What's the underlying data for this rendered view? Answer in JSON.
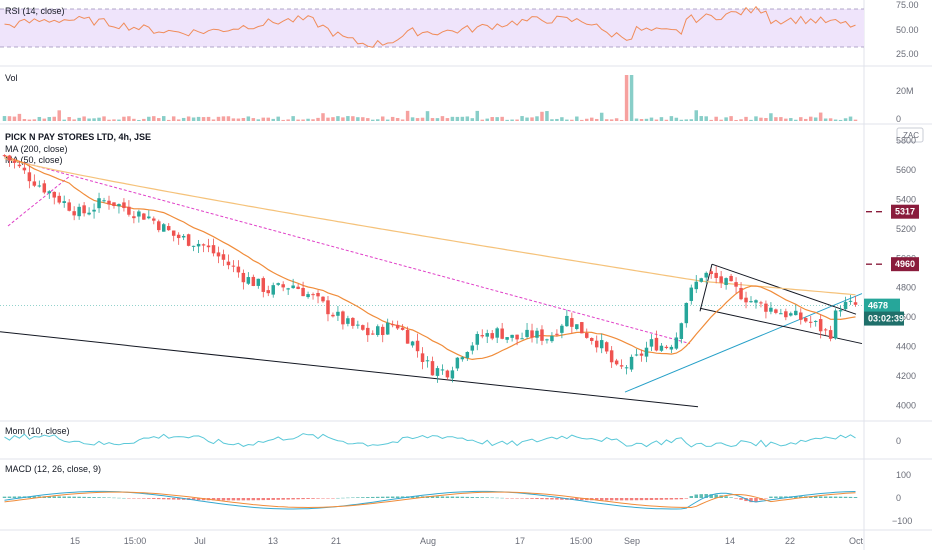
{
  "chart_data": {
    "type": "candlestick",
    "symbol_title": "PICK N PAY STORES LTD, 4h, JSE",
    "currency": "ZAC",
    "colors": {
      "up": "#26a69a",
      "down": "#ef5350",
      "ma200": "#f5c27a",
      "ma50": "#f08c3a",
      "trend": "#131722",
      "trend_pink": "#e040c8",
      "channel": "#26a0c8",
      "rsi": "#f08c5a",
      "rsi_band": "#e9dcf7",
      "mom": "#5ac8d8",
      "macd": "#35a8d0",
      "signal": "#f08c3a",
      "badge_red": "#8a1c3c",
      "badge_teal": "#26a69a",
      "badge_dark": "#1f6f6a"
    },
    "price_axis": {
      "ylim": [
        3900,
        5900
      ],
      "ticks": [
        4000,
        4200,
        4400,
        4600,
        4800,
        5000,
        5200,
        5400,
        5600,
        5800
      ]
    },
    "x_ticks": [
      "15",
      "15:00",
      "Jul",
      "13",
      "21",
      "Aug",
      "17",
      "15:00",
      "Sep",
      "14",
      "22",
      "Oct"
    ],
    "indicators": {
      "ma200_label": "MA (200, close)",
      "ma50_label": "MA (50, close)",
      "rsi": {
        "label": "RSI (14, close)",
        "ticks": [
          "75.00",
          "50.00",
          "25.00"
        ],
        "band": [
          30,
          70
        ],
        "ylim": [
          20,
          80
        ]
      },
      "vol": {
        "label": "Vol",
        "ticks": [
          "20M",
          "0"
        ]
      },
      "mom": {
        "label": "Mom (10, close)",
        "ticks": [
          "0"
        ]
      },
      "macd": {
        "label": "MACD (12, 26, close, 9)",
        "ticks": [
          "100",
          "0",
          "−100"
        ]
      }
    },
    "price_badges": [
      {
        "text": "5317",
        "value": 5317,
        "kind": "level"
      },
      {
        "text": "4960",
        "value": 4960,
        "kind": "level"
      },
      {
        "text": "4678",
        "value": 4678,
        "kind": "last"
      },
      {
        "text": "03:02:39",
        "value": 4590,
        "kind": "timer"
      }
    ],
    "price_path": [
      [
        0,
        5700
      ],
      [
        0.03,
        5550
      ],
      [
        0.06,
        5420
      ],
      [
        0.09,
        5300
      ],
      [
        0.12,
        5400
      ],
      [
        0.15,
        5320
      ],
      [
        0.17,
        5280
      ],
      [
        0.2,
        5150
      ],
      [
        0.23,
        5100
      ],
      [
        0.25,
        5020
      ],
      [
        0.28,
        4880
      ],
      [
        0.31,
        4780
      ],
      [
        0.34,
        4820
      ],
      [
        0.37,
        4700
      ],
      [
        0.4,
        4560
      ],
      [
        0.43,
        4480
      ],
      [
        0.46,
        4560
      ],
      [
        0.48,
        4420
      ],
      [
        0.5,
        4250
      ],
      [
        0.52,
        4230
      ],
      [
        0.54,
        4380
      ],
      [
        0.56,
        4470
      ],
      [
        0.58,
        4500
      ],
      [
        0.6,
        4450
      ],
      [
        0.62,
        4480
      ],
      [
        0.64,
        4460
      ],
      [
        0.66,
        4600
      ],
      [
        0.68,
        4500
      ],
      [
        0.7,
        4420
      ],
      [
        0.72,
        4230
      ],
      [
        0.74,
        4300
      ],
      [
        0.76,
        4420
      ],
      [
        0.78,
        4400
      ],
      [
        0.79,
        4480
      ],
      [
        0.8,
        4700
      ],
      [
        0.82,
        4900
      ],
      [
        0.84,
        4850
      ],
      [
        0.86,
        4780
      ],
      [
        0.88,
        4700
      ],
      [
        0.9,
        4660
      ],
      [
        0.92,
        4620
      ],
      [
        0.94,
        4580
      ],
      [
        0.95,
        4560
      ],
      [
        0.96,
        4520
      ],
      [
        0.97,
        4480
      ],
      [
        0.98,
        4680
      ],
      [
        1.0,
        4678
      ]
    ]
  }
}
